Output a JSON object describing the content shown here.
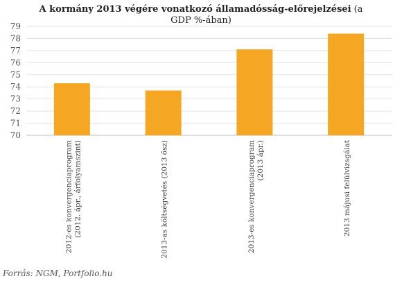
{
  "chart_data": {
    "type": "bar",
    "title_bold": "A kormány 2013 végére vonatkozó államadósság-előrejelzései",
    "title_rest": "(a",
    "title_line2": "GDP %-ában)",
    "categories": [
      [
        "2012-es konvergenciaprogram",
        "(2012. ápr., árfolyamszint)"
      ],
      [
        "2013-as költségvetés (2013 ősz)"
      ],
      [
        "2013-es konvergenciaprogram",
        "(2013 ápr.)"
      ],
      [
        "2013 májusi felülvizsgálat"
      ]
    ],
    "values": [
      74.3,
      73.7,
      77.1,
      78.4
    ],
    "ylim": [
      70,
      79
    ],
    "yticks": [
      70,
      71,
      72,
      73,
      74,
      75,
      76,
      77,
      78,
      79
    ],
    "bar_color": "#f5a623",
    "grid": true,
    "xlabel": "",
    "ylabel": ""
  },
  "source": "Forrás: NGM, Portfolio.hu"
}
